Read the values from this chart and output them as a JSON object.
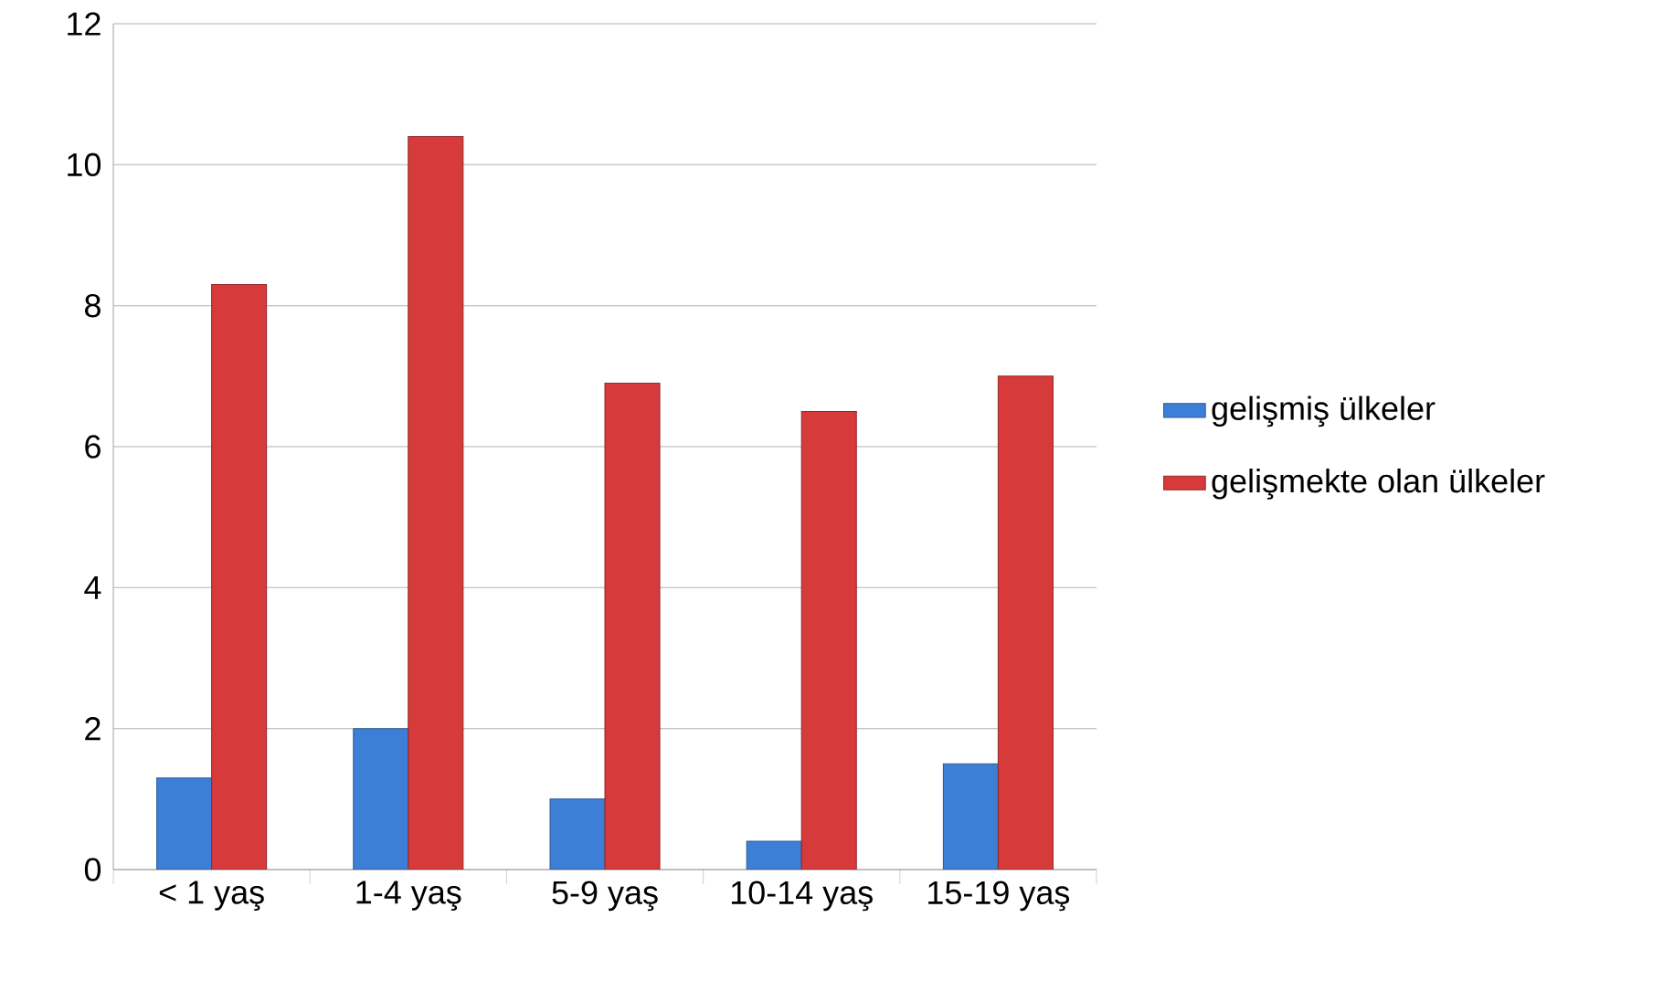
{
  "chart_data": {
    "type": "bar",
    "categories": [
      "< 1 yaş",
      "1-4 yaş",
      "5-9 yaş",
      "10-14 yaş",
      "15-19 yaş"
    ],
    "series": [
      {
        "name": "gelişmiş ülkeler",
        "color": "#3d7fd6",
        "values": [
          1.3,
          2.0,
          1.0,
          0.4,
          1.5
        ]
      },
      {
        "name": "gelişmekte olan ülkeler",
        "color": "#d63a3a",
        "values": [
          8.3,
          10.4,
          6.9,
          6.5,
          7.0
        ]
      }
    ],
    "ylim": [
      0,
      12
    ],
    "yticks": [
      0,
      2,
      4,
      6,
      8,
      10,
      12
    ],
    "grid": "y",
    "legend": "right"
  }
}
